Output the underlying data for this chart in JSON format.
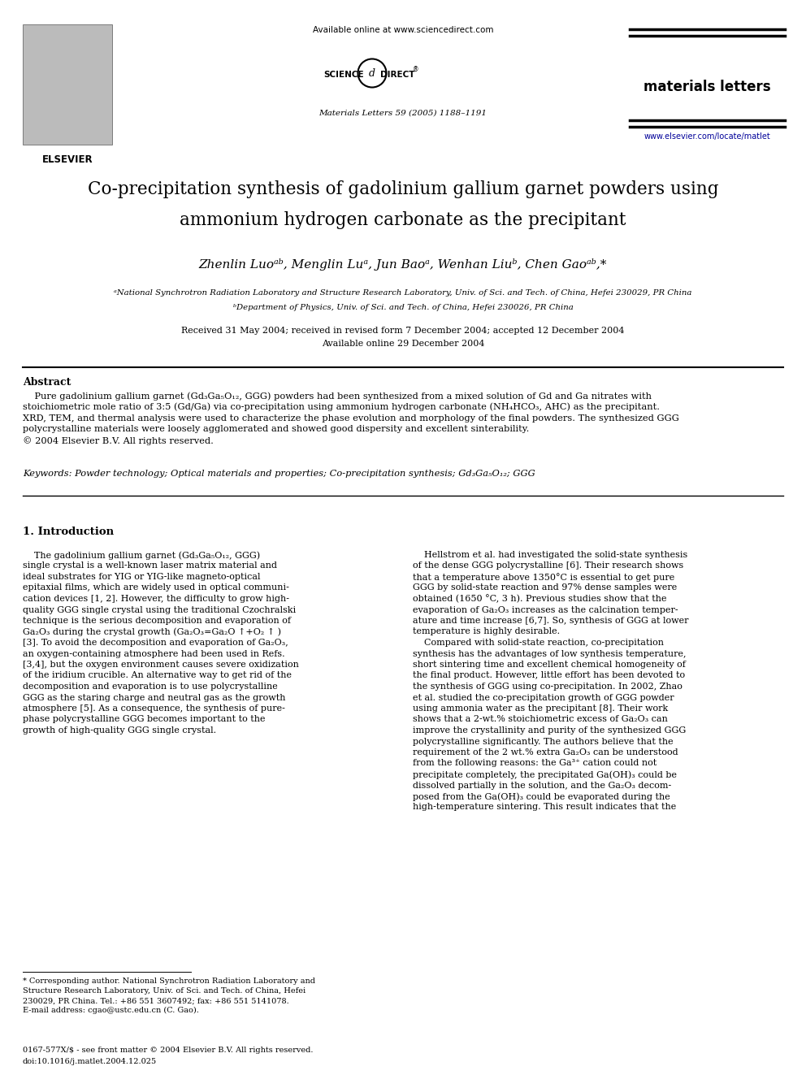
{
  "bg_color": "#ffffff",
  "page_width": 9.92,
  "page_height": 13.23,
  "available_online": "Available online at www.sciencedirect.com",
  "journal_name": "materials letters",
  "citation": "Materials Letters 59 (2005) 1188–1191",
  "website": "www.elsevier.com/locate/matlet",
  "title_line1": "Co-precipitation synthesis of gadolinium gallium garnet powders using",
  "title_line2": "ammonium hydrogen carbonate as the precipitant",
  "authors": "Zhenlin Luoᵃᵇ, Menglin Luᵃ, Jun Baoᵃ, Wenhan Liuᵇ, Chen Gaoᵃᵇ,*",
  "affil_a": "ᵃNational Synchrotron Radiation Laboratory and Structure Research Laboratory, Univ. of Sci. and Tech. of China, Hefei 230029, PR China",
  "affil_b": "ᵇDepartment of Physics, Univ. of Sci. and Tech. of China, Hefei 230026, PR China",
  "dates_line1": "Received 31 May 2004; received in revised form 7 December 2004; accepted 12 December 2004",
  "dates_line2": "Available online 29 December 2004",
  "abstract_heading": "Abstract",
  "abstract_lines": [
    "    Pure gadolinium gallium garnet (Gd₃Ga₅O₁₂, GGG) powders had been synthesized from a mixed solution of Gd and Ga nitrates with",
    "stoichiometric mole ratio of 3:5 (Gd/Ga) via co-precipitation using ammonium hydrogen carbonate (NH₄HCO₃, AHC) as the precipitant.",
    "XRD, TEM, and thermal analysis were used to characterize the phase evolution and morphology of the final powders. The synthesized GGG",
    "polycrystalline materials were loosely agglomerated and showed good dispersity and excellent sinterability.",
    "© 2004 Elsevier B.V. All rights reserved."
  ],
  "keywords_line": "Keywords: Powder technology; Optical materials and properties; Co-precipitation synthesis; Gd₃Ga₅O₁₂; GGG",
  "sec1_head": "1. Introduction",
  "col1_lines": [
    "    The gadolinium gallium garnet (Gd₃Ga₅O₁₂, GGG)",
    "single crystal is a well-known laser matrix material and",
    "ideal substrates for YIG or YIG-like magneto-optical",
    "epitaxial films, which are widely used in optical communi-",
    "cation devices [1, 2]. However, the difficulty to grow high-",
    "quality GGG single crystal using the traditional Czochralski",
    "technique is the serious decomposition and evaporation of",
    "Ga₂O₃ during the crystal growth (Ga₂O₃=Ga₂O ↑+O₂ ↑ )",
    "[3]. To avoid the decomposition and evaporation of Ga₂O₃,",
    "an oxygen-containing atmosphere had been used in Refs.",
    "[3,4], but the oxygen environment causes severe oxidization",
    "of the iridium crucible. An alternative way to get rid of the",
    "decomposition and evaporation is to use polycrystalline",
    "GGG as the staring charge and neutral gas as the growth",
    "atmosphere [5]. As a consequence, the synthesis of pure-",
    "phase polycrystalline GGG becomes important to the",
    "growth of high-quality GGG single crystal."
  ],
  "col2_lines": [
    "    Hellstrom et al. had investigated the solid-state synthesis",
    "of the dense GGG polycrystalline [6]. Their research shows",
    "that a temperature above 1350°C is essential to get pure",
    "GGG by solid-state reaction and 97% dense samples were",
    "obtained (1650 °C, 3 h). Previous studies show that the",
    "evaporation of Ga₂O₃ increases as the calcination temper-",
    "ature and time increase [6,7]. So, synthesis of GGG at lower",
    "temperature is highly desirable.",
    "    Compared with solid-state reaction, co-precipitation",
    "synthesis has the advantages of low synthesis temperature,",
    "short sintering time and excellent chemical homogeneity of",
    "the final product. However, little effort has been devoted to",
    "the synthesis of GGG using co-precipitation. In 2002, Zhao",
    "et al. studied the co-precipitation growth of GGG powder",
    "using ammonia water as the precipitant [8]. Their work",
    "shows that a 2-wt.% stoichiometric excess of Ga₂O₃ can",
    "improve the crystallinity and purity of the synthesized GGG",
    "polycrystalline significantly. The authors believe that the",
    "requirement of the 2 wt.% extra Ga₂O₃ can be understood",
    "from the following reasons: the Ga³⁺ cation could not",
    "precipitate completely, the precipitated Ga(OH)₃ could be",
    "dissolved partially in the solution, and the Ga₂O₃ decom-",
    "posed from the Ga(OH)₃ could be evaporated during the",
    "high-temperature sintering. This result indicates that the"
  ],
  "footnote_lines": [
    "* Corresponding author. National Synchrotron Radiation Laboratory and",
    "Structure Research Laboratory, Univ. of Sci. and Tech. of China, Hefei",
    "230029, PR China. Tel.: +86 551 3607492; fax: +86 551 5141078.",
    "E-mail address: cgao@ustc.edu.cn (C. Gao)."
  ],
  "bottom_line1": "0167-577X/$ - see front matter © 2004 Elsevier B.V. All rights reserved.",
  "bottom_line2": "doi:10.1016/j.matlet.2004.12.025"
}
